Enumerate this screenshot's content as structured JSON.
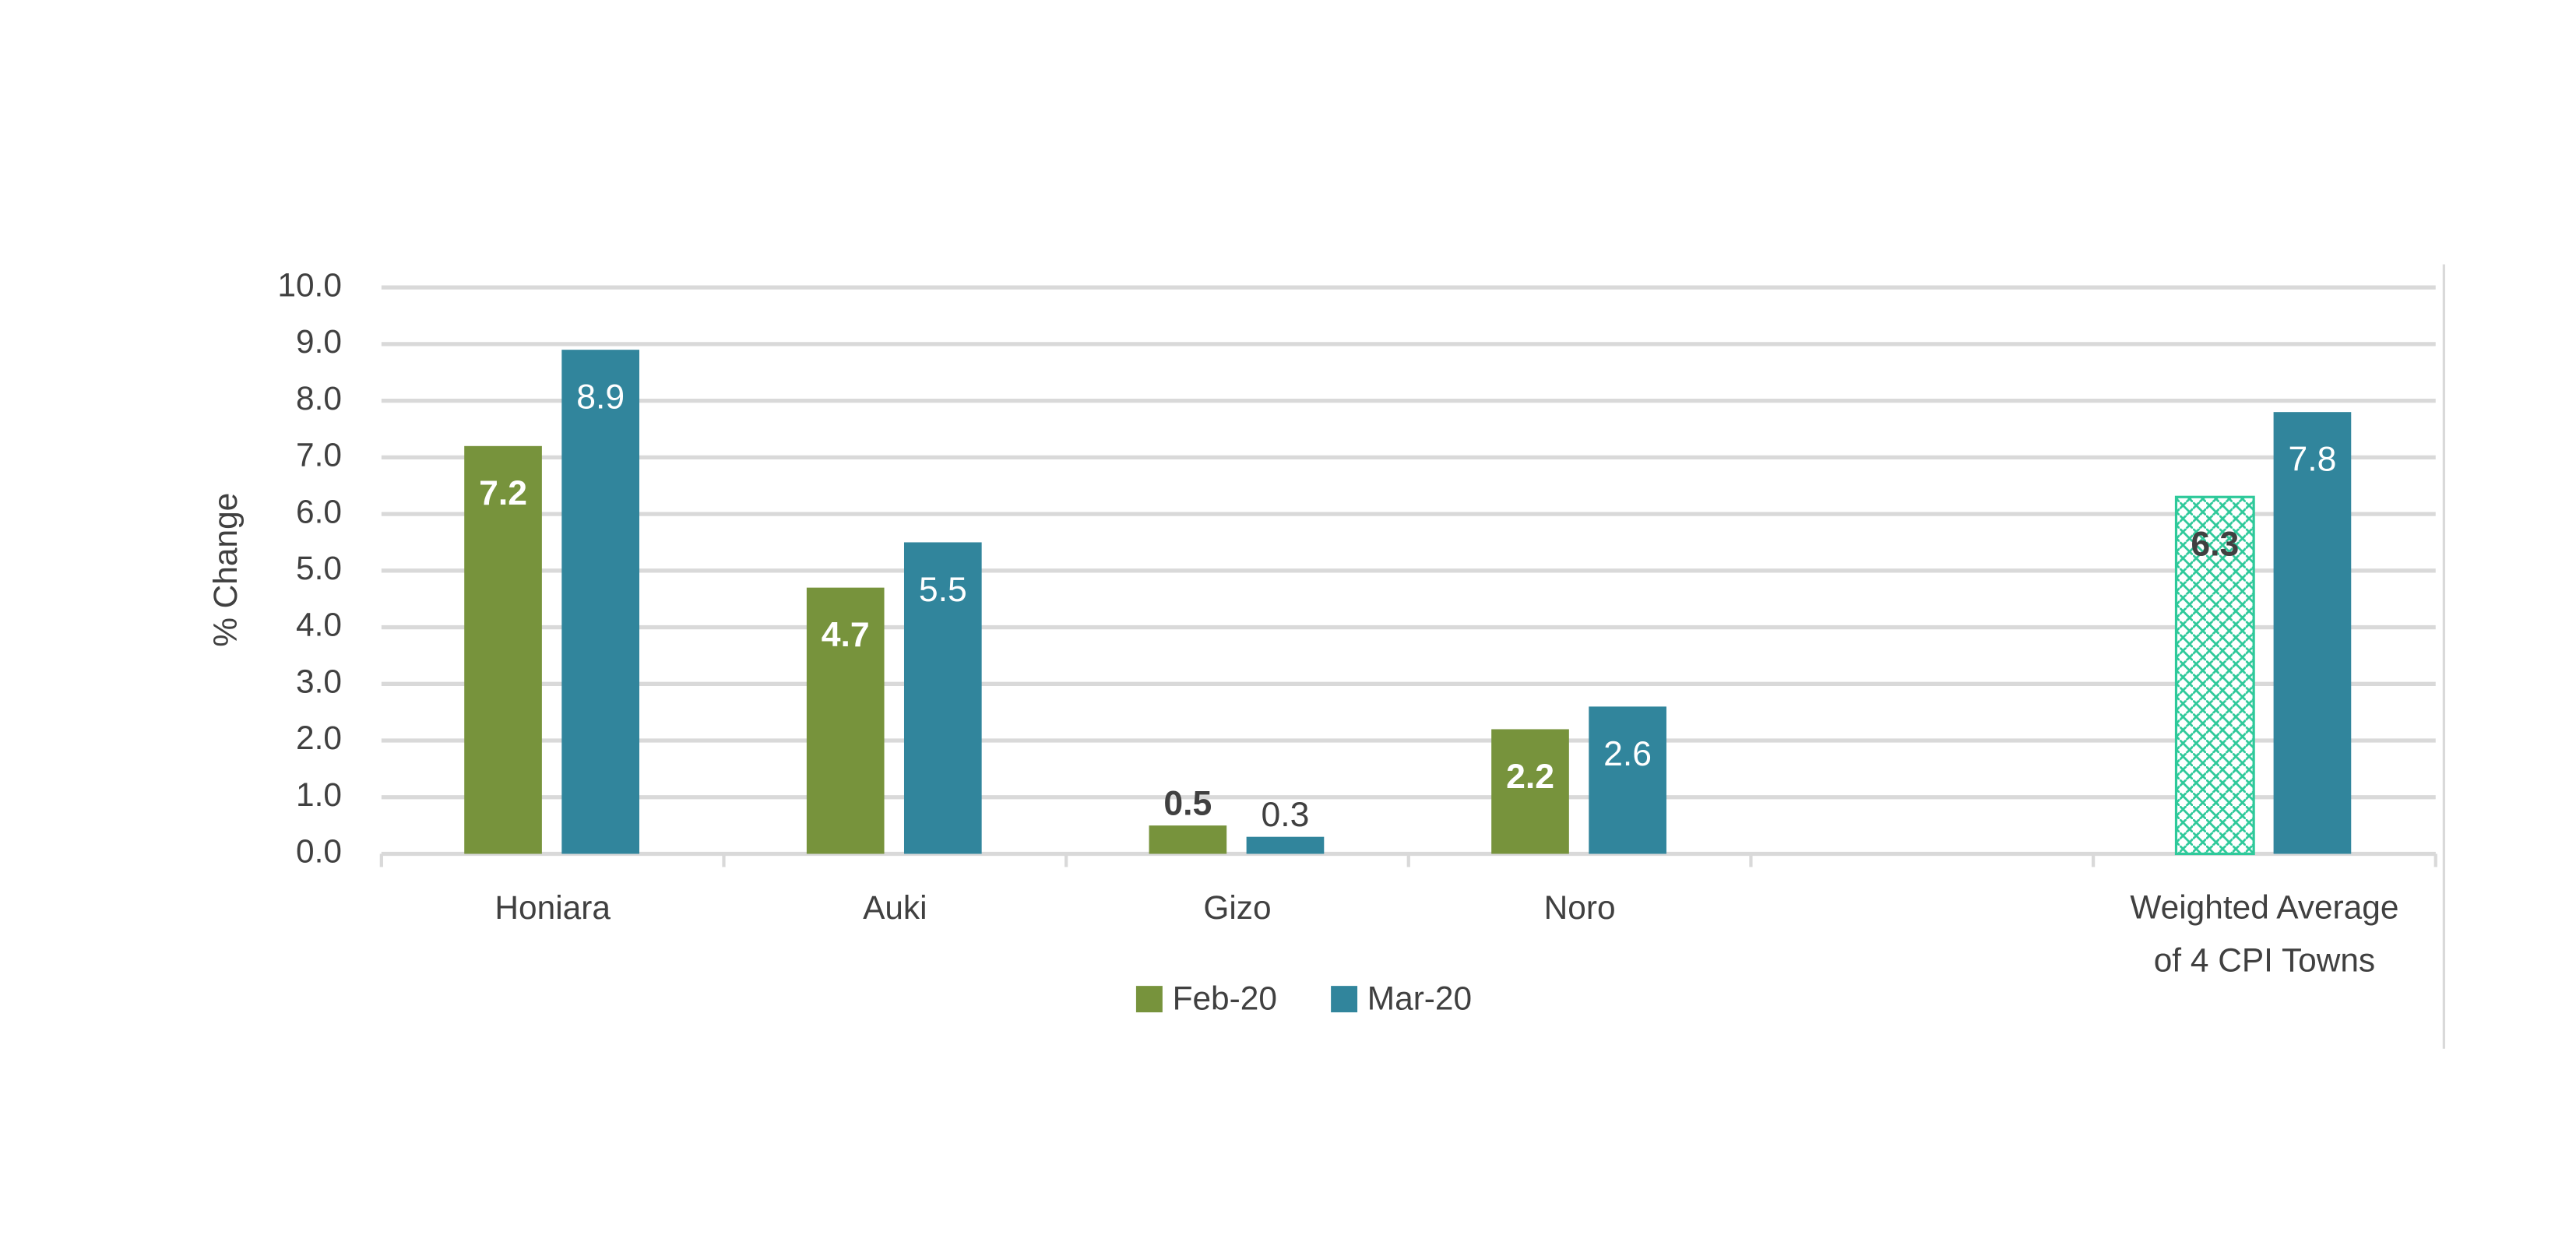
{
  "chart_data": {
    "type": "bar",
    "y_label": "% Change",
    "categories": [
      "Honiara",
      "Auki",
      "Gizo",
      "Noro",
      null,
      "Weighted Average\nof 4 CPI Towns"
    ],
    "series": [
      {
        "name": "Feb-20",
        "color": "#77933c",
        "values": [
          7.2,
          4.7,
          0.5,
          2.2,
          null,
          6.3
        ],
        "hatched_points": [
          5
        ],
        "hatch_color": "#2ec99a"
      },
      {
        "name": "Mar-20",
        "color": "#31859c",
        "values": [
          8.9,
          5.5,
          0.3,
          2.6,
          null,
          7.8
        ]
      }
    ],
    "ylim": [
      0,
      10
    ],
    "yticks": [
      {
        "value": 0,
        "label": "0.0"
      },
      {
        "value": 1,
        "label": "1.0"
      },
      {
        "value": 2,
        "label": "2.0"
      },
      {
        "value": 3,
        "label": "3.0"
      },
      {
        "value": 4,
        "label": "4.0"
      },
      {
        "value": 5,
        "label": "5.0"
      },
      {
        "value": 6,
        "label": "6.0"
      },
      {
        "value": 7,
        "label": "7.0"
      },
      {
        "value": 8,
        "label": "8.0"
      },
      {
        "value": 9,
        "label": "9.0"
      },
      {
        "value": 10,
        "label": "10.0"
      }
    ],
    "grid": true,
    "legend": "bottom"
  }
}
